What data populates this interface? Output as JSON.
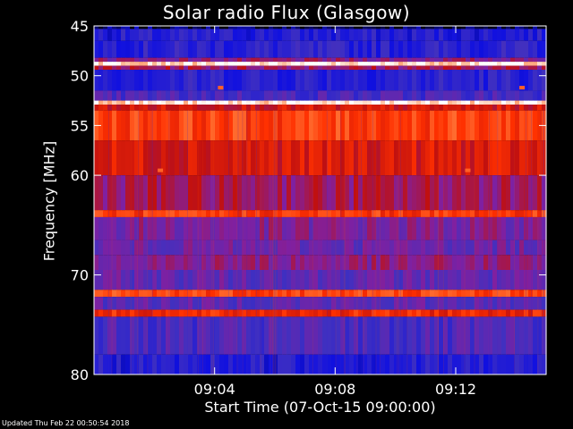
{
  "chart_data": {
    "type": "heatmap",
    "title": "Solar radio Flux (Glasgow)",
    "xlabel": "Start Time (07-Oct-15 09:00:00)",
    "ylabel": "Frequency [MHz]",
    "x_range_minutes": [
      0,
      15
    ],
    "x_ticks": [
      {
        "minute": 4,
        "label": "09:04"
      },
      {
        "minute": 8,
        "label": "09:08"
      },
      {
        "minute": 12,
        "label": "09:12"
      }
    ],
    "y_range_mhz": [
      45,
      80
    ],
    "y_scale": "linear",
    "y_inverted": true,
    "y_ticks": [
      45,
      50,
      55,
      60,
      70,
      80
    ],
    "colormap": [
      "#000000",
      "#1010e0",
      "#4030c0",
      "#8020a0",
      "#c01010",
      "#ff3000",
      "#ff8040",
      "#ffffff"
    ],
    "bands": [
      {
        "f0": 45.0,
        "f1": 45.3,
        "level": 0.05
      },
      {
        "f0": 45.3,
        "f1": 46.5,
        "level": 0.2
      },
      {
        "f0": 46.5,
        "f1": 48.2,
        "level": 0.22
      },
      {
        "f0": 48.2,
        "f1": 48.6,
        "level": 0.45
      },
      {
        "f0": 48.6,
        "f1": 49.0,
        "level": 0.98
      },
      {
        "f0": 49.0,
        "f1": 49.4,
        "level": 0.5
      },
      {
        "f0": 49.4,
        "f1": 51.5,
        "level": 0.22
      },
      {
        "f0": 51.5,
        "f1": 52.5,
        "level": 0.3
      },
      {
        "f0": 52.5,
        "f1": 52.9,
        "level": 0.97
      },
      {
        "f0": 52.9,
        "f1": 53.5,
        "level": 0.6
      },
      {
        "f0": 53.5,
        "f1": 56.5,
        "level": 0.74
      },
      {
        "f0": 56.5,
        "f1": 60.0,
        "level": 0.62
      },
      {
        "f0": 60.0,
        "f1": 63.5,
        "level": 0.5
      },
      {
        "f0": 63.5,
        "f1": 64.2,
        "level": 0.72
      },
      {
        "f0": 64.2,
        "f1": 66.5,
        "level": 0.42
      },
      {
        "f0": 66.5,
        "f1": 68.0,
        "level": 0.38
      },
      {
        "f0": 68.0,
        "f1": 69.5,
        "level": 0.45
      },
      {
        "f0": 69.5,
        "f1": 71.5,
        "level": 0.36
      },
      {
        "f0": 71.5,
        "f1": 72.2,
        "level": 0.75
      },
      {
        "f0": 72.2,
        "f1": 73.5,
        "level": 0.35
      },
      {
        "f0": 73.5,
        "f1": 74.2,
        "level": 0.68
      },
      {
        "f0": 74.2,
        "f1": 78.0,
        "level": 0.3
      },
      {
        "f0": 78.0,
        "f1": 80.0,
        "level": 0.2
      }
    ],
    "hotspots": [
      {
        "minute": 4.2,
        "mhz": 51.2,
        "level": 0.8
      },
      {
        "minute": 14.2,
        "mhz": 51.2,
        "level": 0.8
      },
      {
        "minute": 2.2,
        "mhz": 59.5,
        "level": 0.8
      },
      {
        "minute": 12.4,
        "mhz": 59.5,
        "level": 0.8
      }
    ]
  },
  "footer": "Updated Thu Feb 22 00:50:54 2018"
}
